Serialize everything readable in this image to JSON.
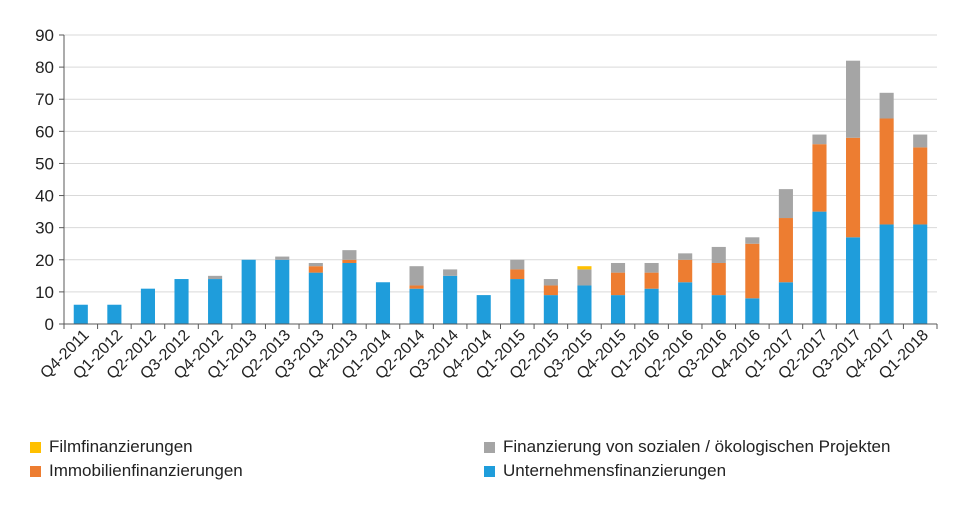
{
  "chart_data": {
    "type": "bar",
    "stacked": true,
    "categories": [
      "Q4-2011",
      "Q1-2012",
      "Q2-2012",
      "Q3-2012",
      "Q4-2012",
      "Q1-2013",
      "Q2-2013",
      "Q3-2013",
      "Q4-2013",
      "Q1-2014",
      "Q2-2014",
      "Q3-2014",
      "Q4-2014",
      "Q1-2015",
      "Q2-2015",
      "Q3-2015",
      "Q4-2015",
      "Q1-2016",
      "Q2-2016",
      "Q3-2016",
      "Q4-2016",
      "Q1-2017",
      "Q2-2017",
      "Q3-2017",
      "Q4-2017",
      "Q1-2018"
    ],
    "series": [
      {
        "name": "Unternehmensfinanzierungen",
        "color": "#1f9ddb",
        "values": [
          6,
          6,
          11,
          14,
          14,
          20,
          20,
          16,
          19,
          13,
          11,
          15,
          9,
          14,
          9,
          12,
          9,
          11,
          13,
          9,
          8,
          13,
          35,
          27,
          31,
          31
        ]
      },
      {
        "name": "Immobilienfinanzierungen",
        "color": "#ed7d31",
        "values": [
          0,
          0,
          0,
          0,
          0,
          0,
          0,
          2,
          1,
          0,
          1,
          0,
          0,
          3,
          3,
          0,
          7,
          5,
          7,
          10,
          17,
          20,
          21,
          31,
          33,
          24
        ]
      },
      {
        "name": "Finanzierung von sozialen / ökologischen Projekten",
        "color": "#a5a5a5",
        "values": [
          0,
          0,
          0,
          0,
          1,
          0,
          1,
          1,
          3,
          0,
          6,
          2,
          0,
          3,
          2,
          5,
          3,
          3,
          2,
          5,
          2,
          9,
          3,
          24,
          8,
          4
        ]
      },
      {
        "name": "Filmfinanzierungen",
        "color": "#ffc000",
        "values": [
          0,
          0,
          0,
          0,
          0,
          0,
          0,
          0,
          0,
          0,
          0,
          0,
          0,
          0,
          0,
          1,
          0,
          0,
          0,
          0,
          0,
          0,
          0,
          0,
          0,
          0
        ]
      }
    ],
    "ylim": [
      0,
      90
    ],
    "yticks": [
      0,
      10,
      20,
      30,
      40,
      50,
      60,
      70,
      80,
      90
    ],
    "grid": true,
    "legend_position": "bottom"
  },
  "legend": [
    {
      "label": "Filmfinanzierungen",
      "color": "#ffc000"
    },
    {
      "label": "Finanzierung von sozialen / ökologischen Projekten",
      "color": "#a5a5a5"
    },
    {
      "label": "Immobilienfinanzierungen",
      "color": "#ed7d31"
    },
    {
      "label": "Unternehmensfinanzierungen",
      "color": "#1f9ddb"
    }
  ]
}
